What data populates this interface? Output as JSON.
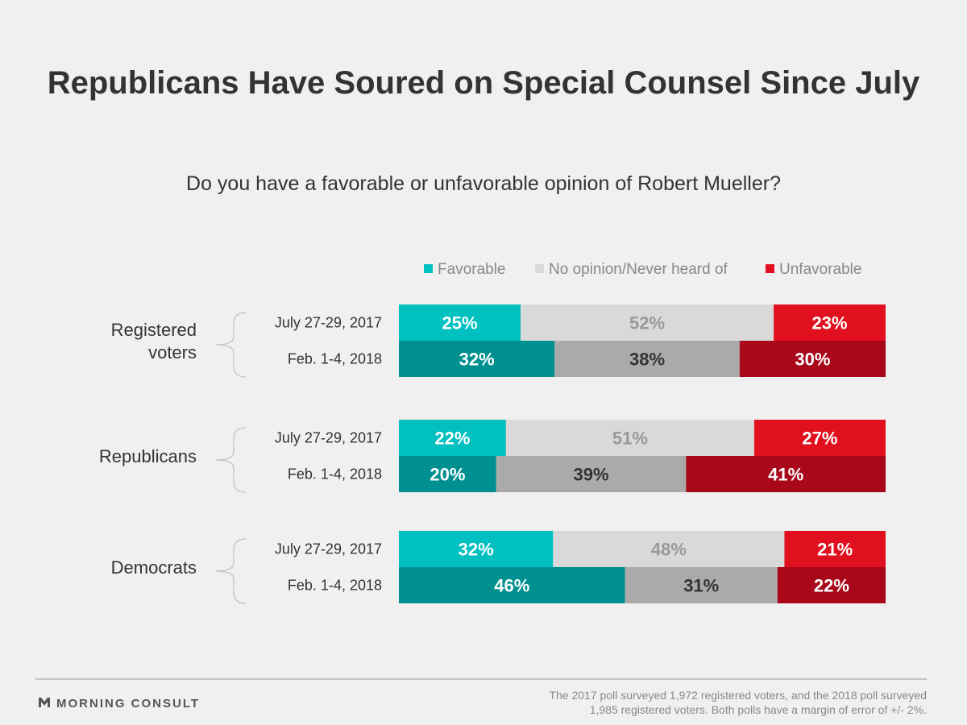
{
  "chart_data": {
    "type": "stacked-bar",
    "orientation": "horizontal",
    "title": "Republicans Have Soured on Special Counsel Since July",
    "subtitle": "Do you have a favorable or unfavorable opinion of Robert Mueller?",
    "legend_position": "top-right",
    "series": [
      {
        "name": "Favorable",
        "colors": [
          "#00c0c0",
          "#009090"
        ],
        "label_colors": [
          "#ffffff",
          "#ffffff"
        ]
      },
      {
        "name": "No opinion/Never heard of",
        "colors": [
          "#d9d9d9",
          "#aaaaaa"
        ],
        "label_colors": [
          "#999999",
          "#333333"
        ]
      },
      {
        "name": "Unfavorable",
        "colors": [
          "#e0101e",
          "#a8081a"
        ],
        "label_colors": [
          "#ffffff",
          "#ffffff"
        ]
      }
    ],
    "groups": [
      {
        "name": "Registered voters",
        "name_lines": [
          "Registered",
          "voters"
        ],
        "rows": [
          {
            "period": "July 27-29, 2017",
            "values": [
              25,
              52,
              23
            ],
            "labels": [
              "25%",
              "52%",
              "23%"
            ]
          },
          {
            "period": "Feb. 1-4, 2018",
            "values": [
              32,
              38,
              30
            ],
            "labels": [
              "32%",
              "38%",
              "30%"
            ]
          }
        ]
      },
      {
        "name": "Republicans",
        "name_lines": [
          "Republicans"
        ],
        "rows": [
          {
            "period": "July 27-29, 2017",
            "values": [
              22,
              51,
              27
            ],
            "labels": [
              "22%",
              "51%",
              "27%"
            ]
          },
          {
            "period": "Feb. 1-4, 2018",
            "values": [
              20,
              39,
              41
            ],
            "labels": [
              "20%",
              "39%",
              "41%"
            ]
          }
        ]
      },
      {
        "name": "Democrats",
        "name_lines": [
          "Democrats"
        ],
        "rows": [
          {
            "period": "July 27-29, 2017",
            "values": [
              32,
              48,
              21
            ],
            "labels": [
              "32%",
              "48%",
              "21%"
            ]
          },
          {
            "period": "Feb. 1-4, 2018",
            "values": [
              46,
              31,
              22
            ],
            "labels": [
              "46%",
              "31%",
              "22%"
            ]
          }
        ]
      }
    ]
  },
  "footer": {
    "brand": "MORNING CONSULT",
    "logo_icon": "morning-consult-logo-icon",
    "note_lines": [
      "The 2017 poll surveyed 1,972 registered voters, and the 2018 poll surveyed",
      "1,985 registered voters. Both polls have a margin of error of +/- 2%."
    ]
  }
}
